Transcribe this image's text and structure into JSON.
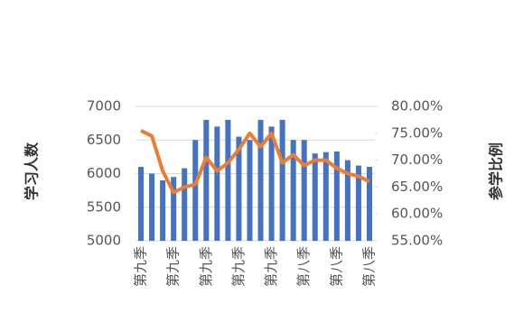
{
  "chart_data": {
    "type": "bar-line",
    "y_label": "学习人数",
    "y2_label": "参学比例",
    "categories": [
      "第九季",
      null,
      null,
      "第九季",
      null,
      null,
      "第九季",
      null,
      null,
      "第九季",
      null,
      null,
      "第九季",
      null,
      null,
      "第八季",
      null,
      null,
      "第八季",
      null,
      null,
      "第八季"
    ],
    "series": [
      {
        "type": "bar",
        "color": "#4472c4",
        "values": [
          6100,
          6000,
          5900,
          5950,
          6080,
          6500,
          6800,
          6700,
          6800,
          6550,
          6500,
          6800,
          6700,
          6800,
          6500,
          6500,
          6300,
          6320,
          6330,
          6200,
          6120,
          6100
        ]
      },
      {
        "type": "line",
        "axis": "y2",
        "color": "#ed7d31",
        "values": [
          75.5,
          74.5,
          68,
          64,
          65,
          65.5,
          70.5,
          68,
          69.5,
          72,
          75,
          72.5,
          75,
          69.5,
          71,
          69,
          70,
          70,
          68.5,
          67.5,
          67,
          66
        ]
      }
    ],
    "ylim": [
      5000,
      7000
    ],
    "yticks": [
      5000,
      5500,
      6000,
      6500,
      7000
    ],
    "y2lim": [
      55,
      80
    ],
    "y2ticks": [
      {
        "value": 55,
        "label": "55.00%"
      },
      {
        "value": 60,
        "label": "60.00%"
      },
      {
        "value": 65,
        "label": "65.00%"
      },
      {
        "value": 70,
        "label": "70.00%"
      },
      {
        "value": 75,
        "label": "75.00%"
      },
      {
        "value": 80,
        "label": "80.00%"
      }
    ],
    "grid": true
  }
}
